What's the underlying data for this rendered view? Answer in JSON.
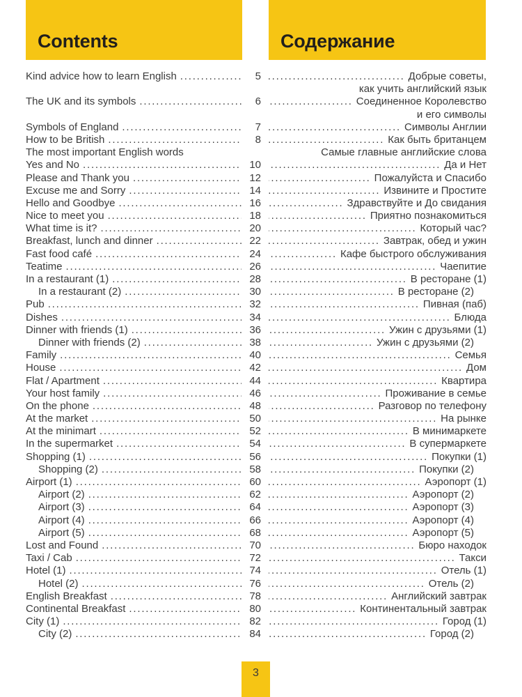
{
  "page": {
    "background": "#ffffff",
    "accent_yellow": "#F6C514",
    "text_color": "#3B3B3B",
    "page_number_badge": "3"
  },
  "header": {
    "left_title": "Contents",
    "right_title": "Содержание"
  },
  "toc": {
    "rows": [
      {
        "en": "Kind advice how to learn English",
        "page": "5",
        "ru": "Добрые советы,",
        "ru_dots": true,
        "indent": false
      },
      {
        "en": "",
        "page": "",
        "ru": "как учить английский язык",
        "ru_dots": false,
        "indent": false
      },
      {
        "en": "The UK and its symbols",
        "page": "6",
        "ru": "Соединенное Королевство",
        "ru_dots": true,
        "indent": false
      },
      {
        "en": "",
        "page": "",
        "ru": "и его символы",
        "ru_dots": false,
        "indent": false
      },
      {
        "en": "Symbols of England",
        "page": "7",
        "ru": "Символы Англии",
        "ru_dots": true,
        "indent": false
      },
      {
        "en": "How to be British",
        "page": "8",
        "ru": "Как быть британцем",
        "ru_dots": true,
        "indent": false
      },
      {
        "en": "The most important English words",
        "page": "",
        "ru": "Самые главные английские слова",
        "ru_dots": false,
        "indent": false
      },
      {
        "en": "Yes and No",
        "page": "10",
        "ru": "Да и Нет",
        "ru_dots": true,
        "indent": false
      },
      {
        "en": "Please and Thank you",
        "page": "12",
        "ru": "Пожалуйста и Спасибо",
        "ru_dots": true,
        "indent": false
      },
      {
        "en": "Excuse me and Sorry",
        "page": "14",
        "ru": "Извините и Простите",
        "ru_dots": true,
        "indent": false
      },
      {
        "en": "Hello and Goodbye",
        "page": "16",
        "ru": "Здравствуйте и До свидания",
        "ru_dots": true,
        "indent": false
      },
      {
        "en": "Nice to meet you",
        "page": "18",
        "ru": "Приятно познакомиться",
        "ru_dots": true,
        "indent": false
      },
      {
        "en": "What time is it?",
        "page": "20",
        "ru": "Который час?",
        "ru_dots": true,
        "indent": false
      },
      {
        "en": "Breakfast, lunch and dinner",
        "page": "22",
        "ru": "Завтрак, обед и ужин",
        "ru_dots": true,
        "indent": false
      },
      {
        "en": "Fast food café",
        "page": "24",
        "ru": "Кафе быстрого обслуживания",
        "ru_dots": true,
        "indent": false
      },
      {
        "en": "Teatime",
        "page": "26",
        "ru": "Чаепитие",
        "ru_dots": true,
        "indent": false
      },
      {
        "en": "In a restaurant (1)",
        "page": "28",
        "ru": "В ресторане (1)",
        "ru_dots": true,
        "indent": false
      },
      {
        "en": "In a restaurant (2)",
        "page": "30",
        "ru": "В ресторане (2)",
        "ru_dots": true,
        "indent": true
      },
      {
        "en": "Pub",
        "page": "32",
        "ru": "Пивная (паб)",
        "ru_dots": true,
        "indent": false
      },
      {
        "en": "Dishes",
        "page": "34",
        "ru": "Блюда",
        "ru_dots": true,
        "indent": false
      },
      {
        "en": "Dinner with friends (1)",
        "page": "36",
        "ru": "Ужин с друзьями (1)",
        "ru_dots": true,
        "indent": false
      },
      {
        "en": "Dinner with friends (2)",
        "page": "38",
        "ru": "Ужин с друзьями (2)",
        "ru_dots": true,
        "indent": true
      },
      {
        "en": "Family",
        "page": "40",
        "ru": "Семья",
        "ru_dots": true,
        "indent": false
      },
      {
        "en": "House",
        "page": "42",
        "ru": "Дом",
        "ru_dots": true,
        "indent": false
      },
      {
        "en": "Flat / Apartment",
        "page": "44",
        "ru": "Квартира",
        "ru_dots": true,
        "indent": false
      },
      {
        "en": "Your host family",
        "page": "46",
        "ru": "Проживание в семье",
        "ru_dots": true,
        "indent": false
      },
      {
        "en": "On the phone",
        "page": "48",
        "ru": "Разговор по телефону",
        "ru_dots": true,
        "indent": false
      },
      {
        "en": "At the market",
        "page": "50",
        "ru": "На рынке",
        "ru_dots": true,
        "indent": false
      },
      {
        "en": "At the minimart",
        "page": "52",
        "ru": "В минимаркете",
        "ru_dots": true,
        "indent": false
      },
      {
        "en": "In the supermarket",
        "page": "54",
        "ru": "В супермаркете",
        "ru_dots": true,
        "indent": false
      },
      {
        "en": "Shopping (1)",
        "page": "56",
        "ru": "Покупки (1)",
        "ru_dots": true,
        "indent": false
      },
      {
        "en": "Shopping (2)",
        "page": "58",
        "ru": "Покупки (2)",
        "ru_dots": true,
        "indent": true
      },
      {
        "en": "Airport (1)",
        "page": "60",
        "ru": "Аэропорт (1)",
        "ru_dots": true,
        "indent": false
      },
      {
        "en": "Airport (2)",
        "page": "62",
        "ru": "Аэропорт (2)",
        "ru_dots": true,
        "indent": true
      },
      {
        "en": "Airport (3)",
        "page": "64",
        "ru": "Аэропорт (3)",
        "ru_dots": true,
        "indent": true
      },
      {
        "en": "Airport (4)",
        "page": "66",
        "ru": "Аэропорт (4)",
        "ru_dots": true,
        "indent": true
      },
      {
        "en": "Airport (5)",
        "page": "68",
        "ru": "Аэропорт (5)",
        "ru_dots": true,
        "indent": true
      },
      {
        "en": "Lost and Found",
        "page": "70",
        "ru": "Бюро находок",
        "ru_dots": true,
        "indent": false
      },
      {
        "en": "Taxi / Cab",
        "page": "72",
        "ru": "Такси",
        "ru_dots": true,
        "indent": false
      },
      {
        "en": "Hotel (1)",
        "page": "74",
        "ru": "Отель (1)",
        "ru_dots": true,
        "indent": false
      },
      {
        "en": "Hotel (2)",
        "page": "76",
        "ru": "Отель (2)",
        "ru_dots": true,
        "indent": true
      },
      {
        "en": "English Breakfast",
        "page": "78",
        "ru": "Английский завтрак",
        "ru_dots": true,
        "indent": false
      },
      {
        "en": "Continental Breakfast",
        "page": "80",
        "ru": "Континентальный завтрак",
        "ru_dots": true,
        "indent": false
      },
      {
        "en": "City (1)",
        "page": "82",
        "ru": "Город (1)",
        "ru_dots": true,
        "indent": false
      },
      {
        "en": "City (2)",
        "page": "84",
        "ru": "Город (2)",
        "ru_dots": true,
        "indent": true
      }
    ]
  }
}
